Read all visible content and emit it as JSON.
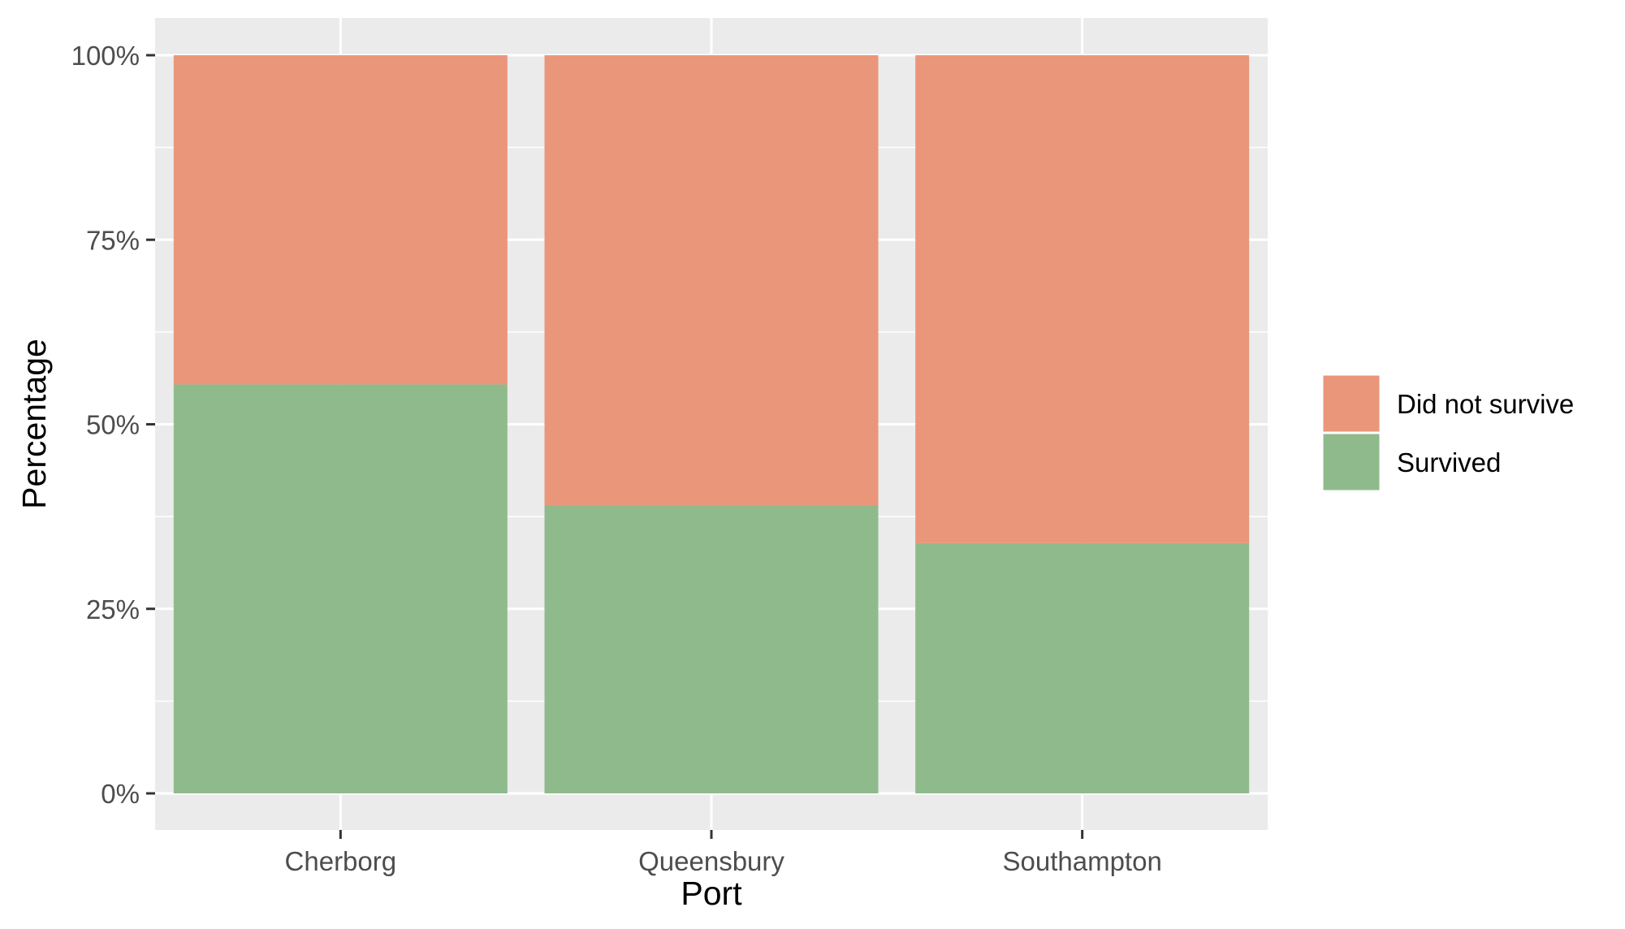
{
  "chart_data": {
    "type": "bar",
    "stacked": true,
    "categories": [
      "Cherborg",
      "Queensbury",
      "Southampton"
    ],
    "series": [
      {
        "name": "Did not survive",
        "values": [
          0.446,
          0.61,
          0.661
        ],
        "color": "#EA967B"
      },
      {
        "name": "Survived",
        "values": [
          0.554,
          0.39,
          0.339
        ],
        "color": "#8FBB8C"
      }
    ],
    "xlabel": "Port",
    "ylabel": "Percentage",
    "ylim": [
      0,
      1
    ],
    "yticks": [
      "0%",
      "25%",
      "50%",
      "75%",
      "100%"
    ],
    "grid": true,
    "legend_position": "right",
    "panel_background": "#EBEBEB"
  }
}
